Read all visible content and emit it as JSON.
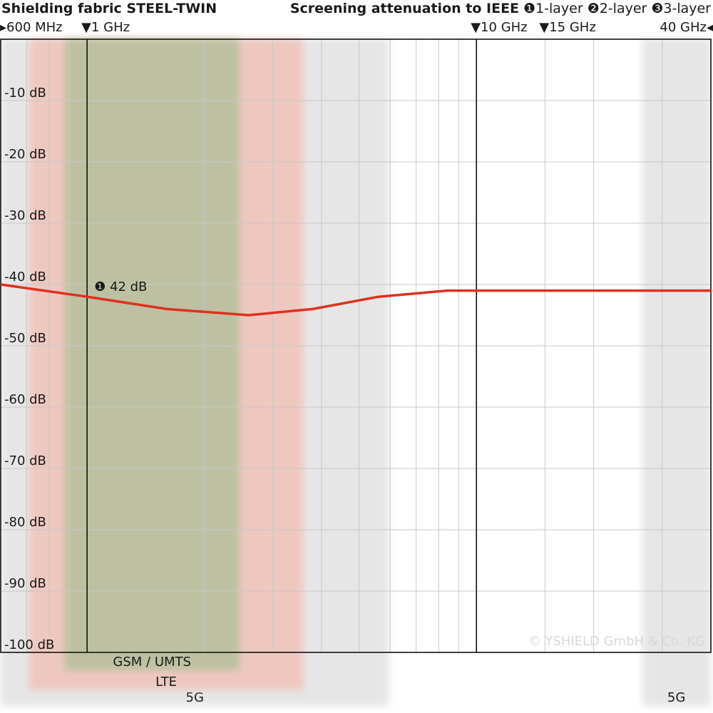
{
  "chart_data": {
    "type": "line",
    "title": "Shielding fabric STEEL-TWIN",
    "subtitle": "Screening attenuation to IEEE",
    "layers": [
      "❶1-layer",
      "❷2-layer",
      "❸3-layer"
    ],
    "x": [
      600,
      1000,
      1600,
      2600,
      3800,
      5600,
      8400,
      40000
    ],
    "series": [
      {
        "name": "1-layer",
        "color": "#e0301e",
        "values": [
          -40,
          -42,
          -44,
          -45,
          -44,
          -42,
          -41,
          -41
        ]
      }
    ],
    "xlim": [
      600,
      40000
    ],
    "xscale": "log",
    "xticks": [
      {
        "value": 600,
        "label": "▸600 MHz"
      },
      {
        "value": 1000,
        "label": "▼1 GHz"
      },
      {
        "value": 10000,
        "label": "▼10 GHz"
      },
      {
        "value": 15000,
        "label": "▼15 GHz"
      },
      {
        "value": 40000,
        "label": "40 GHz◂"
      }
    ],
    "x_minor_ticks": [
      700,
      800,
      900,
      2000,
      3000,
      4000,
      5000,
      6000,
      7000,
      8000,
      9000,
      20000,
      30000
    ],
    "ylim": [
      -100,
      0
    ],
    "yticks": [
      {
        "value": -10,
        "label": "-10 dB"
      },
      {
        "value": -20,
        "label": "-20 dB"
      },
      {
        "value": -30,
        "label": "-30 dB"
      },
      {
        "value": -40,
        "label": "-40 dB"
      },
      {
        "value": -50,
        "label": "-50 dB"
      },
      {
        "value": -60,
        "label": "-60 dB"
      },
      {
        "value": -70,
        "label": "-70 dB"
      },
      {
        "value": -80,
        "label": "-80 dB"
      },
      {
        "value": -90,
        "label": "-90 dB"
      },
      {
        "value": -100,
        "label": "-100 dB"
      }
    ],
    "grid": true,
    "bands": [
      {
        "label": "5G",
        "range": [
          600,
          5960
        ],
        "color": "#e2e2e2"
      },
      {
        "label": "5G",
        "range": [
          26600,
          40000
        ],
        "color": "#e2e2e2"
      },
      {
        "label": "LTE",
        "range": [
          710,
          3590
        ],
        "color": "#f0c3b9"
      },
      {
        "label": "GSM / UMTS",
        "range": [
          876,
          2460
        ],
        "color": "#b5c09c"
      }
    ],
    "annotations": [
      "❶ 42 dB"
    ],
    "copyright": "© YSHIELD GmbH & Co. KG"
  }
}
